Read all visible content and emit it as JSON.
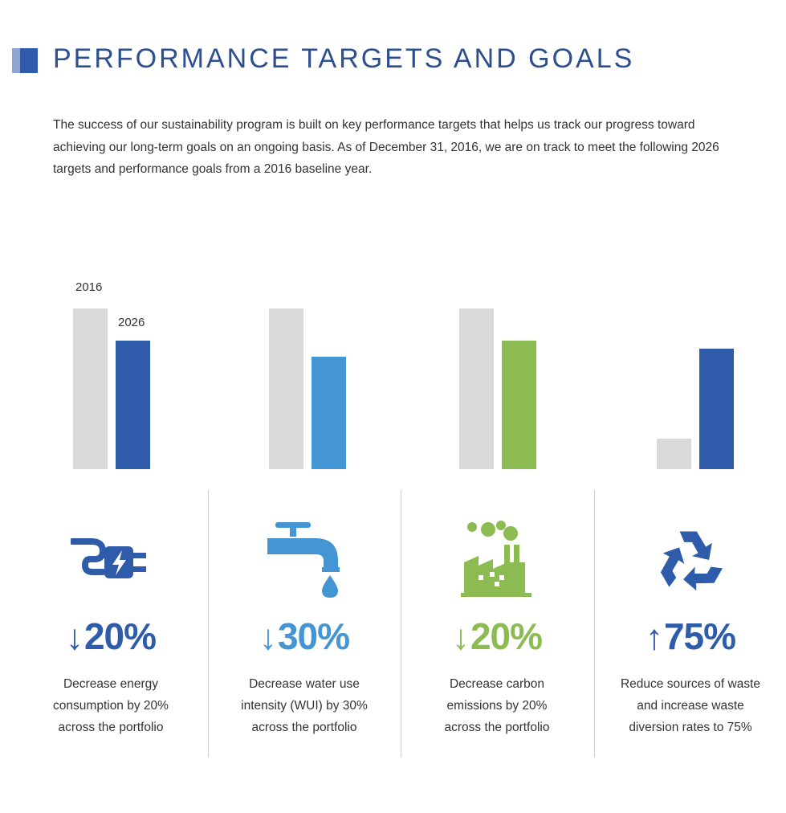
{
  "header": {
    "title": "PERFORMANCE TARGETS AND GOALS",
    "intro": "The success of our sustainability program is built on key performance targets that helps us track our progress toward achieving our long-term goals on an ongoing basis. As of December 31, 2016, we are on track to meet the following 2026 targets and performance goals from a 2016 baseline year."
  },
  "chart_data": {
    "type": "bar",
    "categories": [
      "Energy consumption",
      "Water use intensity (WUI)",
      "Carbon emissions",
      "Waste diversion rate"
    ],
    "series": [
      {
        "name": "2016",
        "values": [
          100,
          100,
          100,
          19
        ]
      },
      {
        "name": "2026",
        "values": [
          80,
          70,
          80,
          75
        ]
      }
    ],
    "ylim": [
      0,
      100
    ],
    "grid": false,
    "legend": "inline-above-first-group",
    "colors": {
      "2016": "#d9d9d9",
      "energy": "#2e5cab",
      "water": "#4495d4",
      "carbon": "#8bbb51",
      "waste": "#2e5cab"
    }
  },
  "goals": [
    {
      "icon": "plug-icon",
      "arrow": "↓",
      "value": "20%",
      "color": "#2e5cab",
      "lines": [
        "Decrease energy",
        "consumption by 20%",
        "across the portfolio"
      ]
    },
    {
      "icon": "faucet-icon",
      "arrow": "↓",
      "value": "30%",
      "color": "#4495d4",
      "lines": [
        "Decrease water use",
        "intensity (WUI) by 30%",
        "across the portfolio"
      ]
    },
    {
      "icon": "factory-icon",
      "arrow": "↓",
      "value": "20%",
      "color": "#8bbb51",
      "lines": [
        "Decrease carbon",
        "emissions by 20%",
        "across the portfolio"
      ]
    },
    {
      "icon": "recycle-icon",
      "arrow": "↑",
      "value": "75%",
      "color": "#2e5cab",
      "lines": [
        "Reduce sources of waste",
        "and increase waste",
        "diversion rates to 75%"
      ]
    }
  ]
}
